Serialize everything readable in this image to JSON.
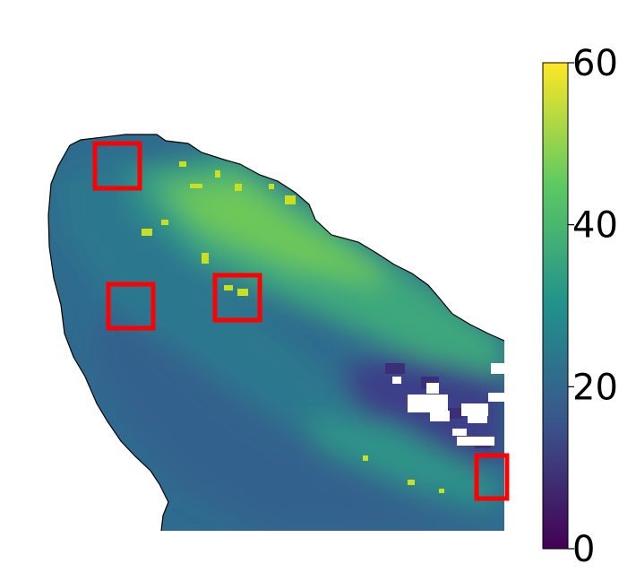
{
  "colorbar": {
    "min": 0,
    "max": 60,
    "ticks": [
      {
        "value": 0,
        "label": "0"
      },
      {
        "value": 20,
        "label": "20"
      },
      {
        "value": 40,
        "label": "40"
      },
      {
        "value": 60,
        "label": "60"
      }
    ],
    "colormap": "viridis",
    "stops": [
      "#440154",
      "#3b528b",
      "#21918c",
      "#5ec962",
      "#fde725"
    ]
  },
  "map": {
    "highlight_box_color": "#ff0000",
    "highlight_box_count": 4,
    "coastline_color": "#000000",
    "missing_data_color": "#ffffff"
  }
}
